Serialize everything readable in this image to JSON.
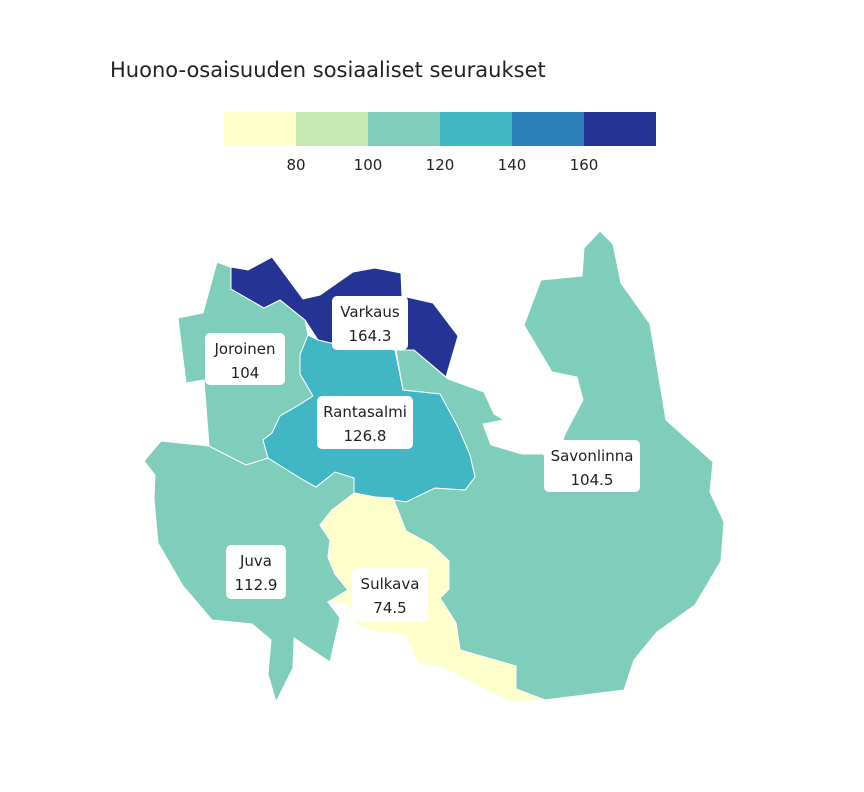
{
  "title": "Huono-osaisuuden sosiaaliset seuraukset",
  "legend": {
    "colors": [
      "#ffffcc",
      "#c7e9b4",
      "#7fcdbb",
      "#41b6c4",
      "#2c7fb8",
      "#253494"
    ],
    "ticks": [
      "80",
      "100",
      "120",
      "140",
      "160"
    ],
    "breaks": [
      80,
      100,
      120,
      140,
      160
    ]
  },
  "regions": [
    {
      "id": "savonlinna",
      "name": "Savonlinna",
      "value": "104.5",
      "color": "#7fcdbb"
    },
    {
      "id": "juva",
      "name": "Juva",
      "value": "112.9",
      "color": "#7fcdbb"
    },
    {
      "id": "joroinen",
      "name": "Joroinen",
      "value": "104",
      "color": "#7fcdbb"
    },
    {
      "id": "varkaus",
      "name": "Varkaus",
      "value": "164.3",
      "color": "#253494"
    },
    {
      "id": "rantasalmi",
      "name": "Rantasalmi",
      "value": "126.8",
      "color": "#41b6c4"
    },
    {
      "id": "sulkava",
      "name": "Sulkava",
      "value": "74.5",
      "color": "#ffffcc"
    }
  ]
}
